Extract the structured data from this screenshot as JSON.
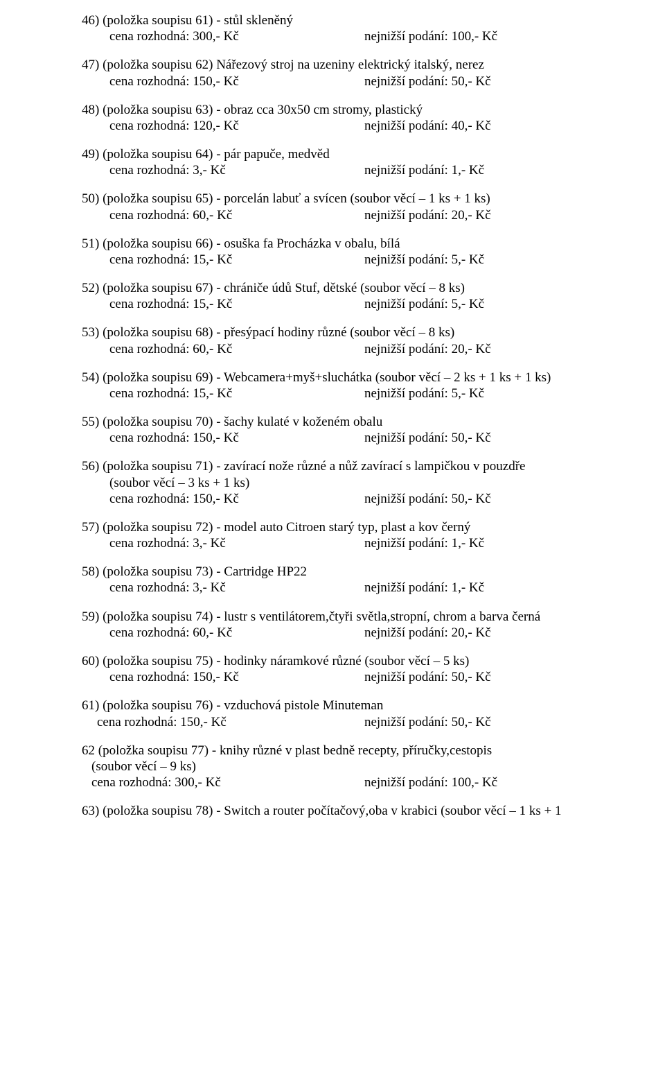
{
  "items": [
    {
      "num": "46)",
      "ref": "(položka soupisu 61) -  stůl skleněný",
      "sub": null,
      "price_l": "cena rozhodná: 300,- Kč",
      "price_r": "nejnižší podání: 100,- Kč",
      "pr_class": "price-row"
    },
    {
      "num": "47)",
      "ref": "(položka soupisu 62) Nářezový stroj na uzeniny elektrický italský, nerez",
      "sub": null,
      "price_l": "cena rozhodná: 150,- Kč",
      "price_r": "nejnižší podání: 50,- Kč",
      "pr_class": "price-row"
    },
    {
      "num": "48)",
      "ref": "(položka soupisu 63) - obraz  cca 30x50 cm stromy, plastický",
      "sub": null,
      "price_l": "cena rozhodná: 120,- Kč",
      "price_r": "nejnižší podání: 40,- Kč",
      "pr_class": "price-row"
    },
    {
      "num": "49)",
      "ref": "(položka soupisu 64) - pár papuče, medvěd",
      "sub": null,
      "price_l": "cena rozhodná: 3,- Kč",
      "price_r": "nejnižší podání: 1,- Kč",
      "pr_class": "price-row"
    },
    {
      "num": "50)",
      "ref": "(položka soupisu 65) - porcelán labuť a svícen (soubor věcí – 1 ks + 1 ks)",
      "sub": null,
      "price_l": "cena rozhodná: 60,- Kč",
      "price_r": "nejnižší podání: 20,- Kč",
      "pr_class": "price-row"
    },
    {
      "num": "51)",
      "ref": "(položka soupisu 66) - osuška fa Procházka v obalu, bílá",
      "sub": null,
      "price_l": "cena rozhodná:  15,- Kč",
      "price_r": "nejnižší podání: 5,- Kč",
      "pr_class": "price-row"
    },
    {
      "num": "52)",
      "ref": "(položka soupisu 67) - chrániče údů Stuf, dětské (soubor věcí – 8 ks)",
      "sub": null,
      "price_l": "cena rozhodná: 15,- Kč",
      "price_r": "nejnižší podání: 5,- Kč",
      "pr_class": "price-row"
    },
    {
      "num": "53)",
      "ref": "(položka soupisu 68) - přesýpací hodiny různé (soubor věcí – 8 ks)",
      "sub": null,
      "price_l": "cena rozhodná: 60,- Kč",
      "price_r": "nejnižší podání: 20,- Kč",
      "pr_class": "price-row"
    },
    {
      "num": "54)",
      "ref": "(položka soupisu 69) - Webcamera+myš+sluchátka (soubor věcí – 2 ks + 1 ks + 1 ks)",
      "sub": null,
      "price_l": "cena rozhodná: 15,- Kč",
      "price_r": "nejnižší podání: 5,- Kč",
      "pr_class": "price-row"
    },
    {
      "num": "55)",
      "ref": "(položka soupisu 70) - šachy kulaté v koženém obalu",
      "sub": null,
      "price_l": "cena rozhodná: 150,- Kč",
      "price_r": "nejnižší podání: 50,- Kč",
      "pr_class": "price-row"
    },
    {
      "num": "56)",
      "ref": "(položka soupisu 71) - zavírací nože různé a nůž zavírací s lampičkou v pouzdře",
      "sub": "(soubor věcí – 3 ks + 1 ks)",
      "price_l": "cena rozhodná:  150,- Kč",
      "price_r": "nejnižší podání: 50,- Kč",
      "pr_class": "price-row"
    },
    {
      "num": "57)",
      "ref": "(položka soupisu 72) -  model auto Citroen starý typ, plast a kov černý",
      "sub": null,
      "price_l": "cena rozhodná: 3,- Kč",
      "price_r": "nejnižší podání: 1,- Kč",
      "pr_class": "price-row"
    },
    {
      "num": "58)",
      "ref": "(položka soupisu 73) - Cartridge HP22",
      "sub": null,
      "price_l": "cena rozhodná: 3,- Kč",
      "price_r": "nejnižší podání: 1,- Kč",
      "pr_class": "price-row"
    },
    {
      "num": "59)",
      "ref": "(položka soupisu 74) - lustr s ventilátorem,čtyři světla,stropní, chrom a barva černá",
      "sub": null,
      "price_l": "cena rozhodná: 60,- Kč",
      "price_r": "nejnižší podání: 20,- Kč",
      "pr_class": "price-row"
    },
    {
      "num": "60)",
      "ref": "(položka soupisu 75) - hodinky náramkové různé (soubor věcí – 5 ks)",
      "sub": null,
      "price_l": "cena rozhodná: 150,- Kč",
      "price_r": "nejnižší podání: 50,- Kč",
      "pr_class": "price-row"
    },
    {
      "num": "61)",
      "ref": "(položka soupisu 76) - vzduchová pistole Minuteman",
      "sub": null,
      "price_l": "cena rozhodná: 150,- Kč",
      "price_r": "nejnižší podání: 50,- Kč",
      "pr_class": "price-row indent1"
    },
    {
      "num": "62",
      "ref": " (položka soupisu 77) - knihy různé v plast bedně  recepty, příručky,cestopis",
      "sub": " (soubor věcí – 9 ks)",
      "sub_class": "indent2",
      "price_l": "cena rozhodná: 300,- Kč",
      "price_r": "nejnižší podání: 100,- Kč",
      "pr_class": "price-row indent2"
    }
  ],
  "last_line": "63) (položka soupisu  78) - Switch a router počítačový,oba v krabici  (soubor věcí – 1 ks + 1"
}
